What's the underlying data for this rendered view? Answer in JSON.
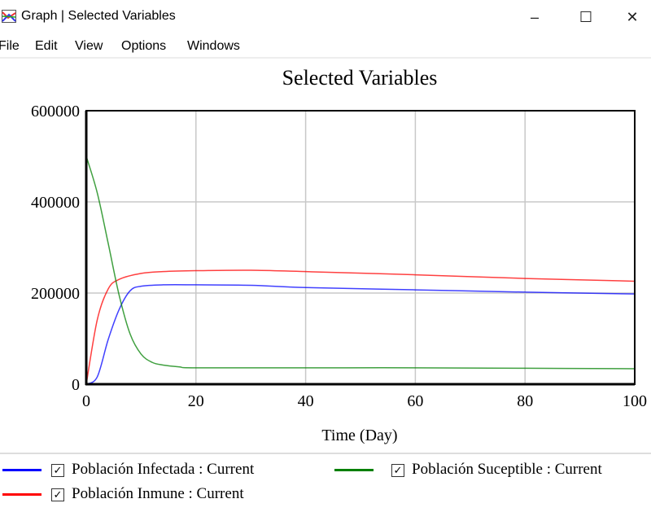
{
  "window": {
    "title": "Graph | Selected Variables",
    "minimize": "–",
    "maximize": "☐",
    "close": "✕"
  },
  "menu": [
    "File",
    "Edit",
    "View",
    "Options",
    "Windows"
  ],
  "chart_data": {
    "type": "line",
    "title": "Selected Variables",
    "xlabel": "Time (Day)",
    "ylabel": "",
    "xlim": [
      0,
      100
    ],
    "ylim": [
      0,
      600000
    ],
    "xticks": [
      0,
      20,
      40,
      60,
      80,
      100
    ],
    "yticks": [
      0,
      200000,
      400000,
      600000
    ],
    "grid": true,
    "legend_placement": "bottom",
    "series": [
      {
        "name": "Población Infectada : Current",
        "color": "#0000ff",
        "x": [
          0,
          2,
          4,
          6,
          8,
          10,
          14,
          20,
          30,
          40,
          60,
          80,
          100
        ],
        "y": [
          0,
          16000,
          98000,
          164000,
          205000,
          215000,
          218000,
          218000,
          217000,
          212000,
          207000,
          202000,
          198000
        ]
      },
      {
        "name": "Población Inmune : Current",
        "color": "#ff0000",
        "x": [
          0,
          2,
          4,
          6,
          10,
          14,
          20,
          30,
          40,
          60,
          80,
          100
        ],
        "y": [
          0,
          141000,
          209000,
          230000,
          243000,
          247000,
          249000,
          250000,
          247000,
          240000,
          232000,
          226000
        ]
      },
      {
        "name": "Población Suceptible : Current",
        "color": "#008000",
        "x": [
          0,
          2,
          4,
          6,
          8,
          10,
          12,
          14,
          17,
          20,
          40,
          60,
          80,
          100
        ],
        "y": [
          500000,
          420000,
          309000,
          195000,
          110000,
          66000,
          48000,
          42000,
          38000,
          36000,
          36000,
          36000,
          35000,
          34000
        ]
      }
    ]
  },
  "legend": {
    "checkbox_glyph": "✓"
  }
}
